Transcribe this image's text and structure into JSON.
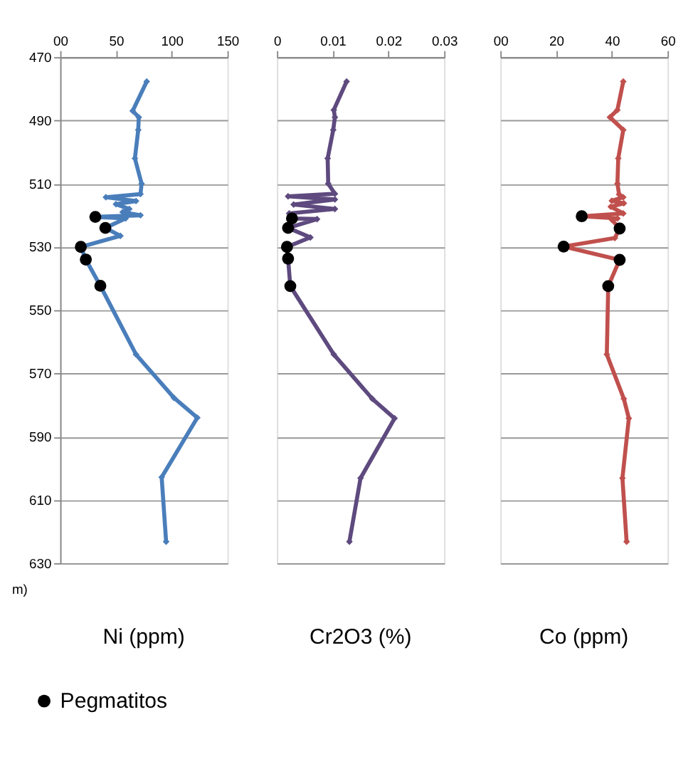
{
  "chart_data": [
    {
      "type": "line",
      "xlabel": "Ni (ppm)",
      "xlim": [
        0,
        150
      ],
      "xticks": [
        {
          "value": 0,
          "label": "00"
        },
        50,
        100,
        150
      ],
      "ylim": [
        630,
        470
      ],
      "yticks": [
        470,
        490,
        510,
        530,
        550,
        570,
        590,
        610,
        630
      ],
      "grid": "y",
      "marker": "diamond",
      "legend": "bottom left",
      "annotations": [
        "m)"
      ],
      "series": [
        {
          "color": "#4a7ebb",
          "x": [
            77.6,
            65,
            70.5,
            70,
            67,
            73,
            72,
            41,
            68,
            50,
            62,
            56,
            72,
            31.5,
            58.7,
            40.5,
            54,
            18.5,
            23,
            36,
            68,
            102,
            123,
            91,
            95
          ],
          "values": [
            477.7,
            487,
            489,
            493,
            502,
            510,
            513.3,
            514.3,
            515.5,
            516.5,
            518,
            519,
            520,
            520.5,
            521,
            524,
            526.5,
            530,
            534,
            542.3,
            564,
            577.7,
            584,
            602.8,
            623.2
          ]
        },
        {
          "type": "scatter",
          "name": "Pegmatitos",
          "color": "#000000",
          "marker": "circle",
          "x": [
            31.5,
            40.5,
            18.5,
            23,
            36
          ],
          "values": [
            520.5,
            524,
            530,
            534,
            542.3
          ]
        }
      ]
    },
    {
      "type": "line",
      "xlabel": "Cr2O3 (%)",
      "xlim": [
        0,
        0.03
      ],
      "xticks": [
        0,
        0.01,
        0.02,
        0.03
      ],
      "ylim": [
        630,
        470
      ],
      "yticks": [
        470,
        490,
        510,
        530,
        550,
        570,
        590,
        610,
        630
      ],
      "grid": "y",
      "tick_labels": "x",
      "marker": "diamond",
      "series": [
        {
          "color": "#5e4a7e",
          "x": [
            0.0125,
            0.0102,
            0.0104,
            0.0101,
            0.0091,
            0.0092,
            0.0104,
            0.002,
            0.0104,
            0.003,
            0.0104,
            0.0022,
            0.0027,
            0.0072,
            0.002,
            0.006,
            0.0018,
            0.002,
            0.0024,
            0.0102,
            0.0171,
            0.0211,
            0.015,
            0.013
          ],
          "values": [
            477.7,
            486.7,
            489,
            493,
            502,
            510,
            513.2,
            514,
            515,
            516.6,
            518,
            519.4,
            521,
            521.2,
            524,
            527,
            530,
            533.7,
            542.4,
            564,
            578,
            584.2,
            603.1,
            623.2
          ]
        },
        {
          "type": "scatter",
          "color": "#000000",
          "marker": "circle",
          "x": [
            0.0027,
            0.002,
            0.0018,
            0.002,
            0.0024
          ],
          "values": [
            521,
            524,
            530,
            533.7,
            542.4
          ]
        }
      ]
    },
    {
      "type": "line",
      "xlabel": "Co (ppm)",
      "xlim": [
        0,
        60
      ],
      "xticks": [
        {
          "value": 0,
          "label": "00"
        },
        20,
        40,
        60
      ],
      "ylim": [
        630,
        470
      ],
      "yticks": [
        470,
        490,
        510,
        530,
        550,
        570,
        590,
        610,
        630
      ],
      "grid": "y",
      "tick_labels": "x",
      "marker": "diamond",
      "series": [
        {
          "color": "#c0504d",
          "x": [
            44.1,
            42,
            39.3,
            44.1,
            42.3,
            42,
            42.6,
            44.1,
            40,
            44.3,
            39.6,
            44.1,
            29.2,
            42,
            40,
            42.8,
            41.1,
            22.7,
            42.8,
            38.7,
            38.2,
            44.3,
            46.1,
            43.8,
            45.3
          ],
          "values": [
            477.7,
            486.7,
            489,
            493,
            502,
            510,
            513.4,
            514.3,
            515.4,
            516.2,
            517.3,
            519.4,
            520.3,
            521,
            521.4,
            524.2,
            527.2,
            529.9,
            534.1,
            542.4,
            564,
            578,
            584.2,
            603.1,
            623.2
          ]
        },
        {
          "type": "scatter",
          "color": "#000000",
          "marker": "circle",
          "x": [
            29.2,
            42.8,
            22.7,
            42.8,
            38.7
          ],
          "values": [
            520.3,
            524.2,
            529.9,
            534.1,
            542.4
          ]
        }
      ]
    }
  ]
}
